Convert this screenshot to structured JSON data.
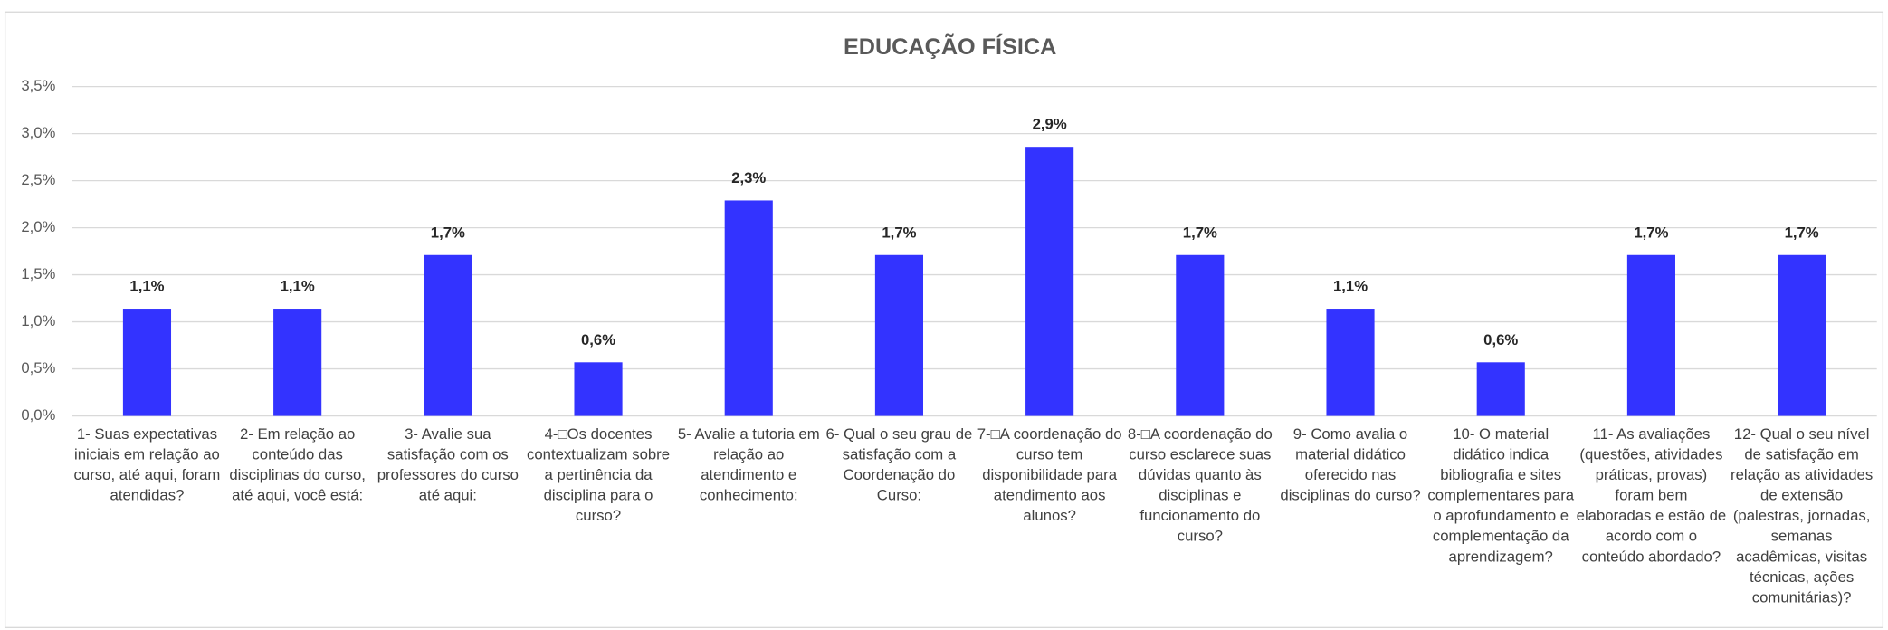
{
  "chart_data": {
    "type": "bar",
    "title": "EDUCAÇÃO FÍSICA",
    "categories": [
      "1-  Suas expectativas iniciais em relação ao curso, até aqui, foram atendidas?",
      "2- Em relação ao conteúdo das disciplinas do curso, até aqui, você está:",
      "3- Avalie sua satisfação com os professores do curso até aqui:",
      "4-□Os docentes contextualizam sobre a pertinência da disciplina para o curso?",
      "5- Avalie a tutoria em relação ao atendimento e conhecimento:",
      "6- Qual o seu grau de satisfação com a Coordenação do Curso:",
      "7-□A coordenação do curso tem disponibilidade para atendimento aos alunos?",
      "8-□A coordenação do curso esclarece suas dúvidas quanto às disciplinas e funcionamento do curso?",
      "9- Como avalia o material didático oferecido nas disciplinas do curso?",
      "10- O material didático indica bibliografia e sites complementares para o aprofundamento e complementação da aprendizagem?",
      "11- As avaliações (questões, atividades práticas, provas) foram bem elaboradas e estão de acordo com o conteúdo abordado?",
      "12- Qual o seu nível de satisfação em relação as atividades de extensão (palestras, jornadas, semanas acadêmicas, visitas técnicas, ações comunitárias)?"
    ],
    "values": [
      1.14,
      1.14,
      1.71,
      0.57,
      2.29,
      1.71,
      2.86,
      1.71,
      1.14,
      0.57,
      1.71,
      1.71
    ],
    "value_labels": [
      "1,1%",
      "1,1%",
      "1,7%",
      "0,6%",
      "2,3%",
      "1,7%",
      "2,9%",
      "1,7%",
      "1,1%",
      "0,6%",
      "1,7%",
      "1,7%"
    ],
    "color": "#3333ff",
    "ylim": [
      0,
      3.5
    ],
    "yticks": [
      {
        "value": 0,
        "label": "0,0%"
      },
      {
        "value": 0.5,
        "label": "0,5%"
      },
      {
        "value": 1,
        "label": "1,0%"
      },
      {
        "value": 1.5,
        "label": "1,5%"
      },
      {
        "value": 2,
        "label": "2,0%"
      },
      {
        "value": 2.5,
        "label": "2,5%"
      },
      {
        "value": 3,
        "label": "3,0%"
      },
      {
        "value": 3.5,
        "label": "3,5%"
      }
    ],
    "grid": true
  }
}
